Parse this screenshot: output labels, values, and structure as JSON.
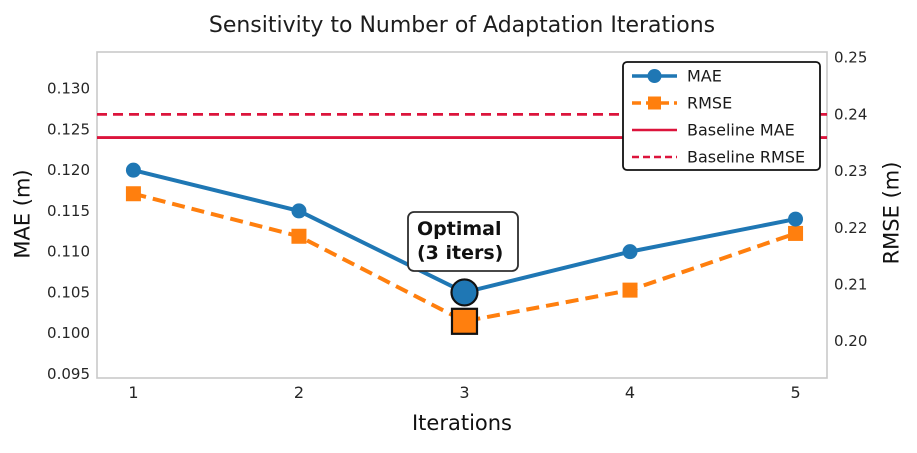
{
  "title": "Sensitivity to Number of Adaptation Iterations",
  "annotation": {
    "line1": "Optimal",
    "line2": "(3 iters)"
  },
  "colors": {
    "mae": "#1f77b4",
    "rmse": "#ff7f0e",
    "baseline": "#dc143c",
    "spine": "#c9c9c9",
    "text": "#262626"
  },
  "chart_data": {
    "type": "line",
    "title": "Sensitivity to Number of Adaptation Iterations",
    "xlabel": "Iterations",
    "ylabel_left": "MAE (m)",
    "ylabel_right": "RMSE (m)",
    "x": [
      1,
      2,
      3,
      4,
      5
    ],
    "series": [
      {
        "name": "MAE",
        "axis": "left",
        "color": "#1f77b4",
        "marker": "circle",
        "linestyle": "solid",
        "values": [
          0.12,
          0.115,
          0.105,
          0.11,
          0.114
        ]
      },
      {
        "name": "RMSE",
        "axis": "right",
        "color": "#ff7f0e",
        "marker": "square",
        "linestyle": "dashed",
        "values": [
          0.226,
          0.2185,
          0.2035,
          0.209,
          0.219
        ]
      }
    ],
    "baselines": [
      {
        "name": "Baseline MAE",
        "axis": "left",
        "value": 0.124,
        "color": "#dc143c",
        "linestyle": "solid"
      },
      {
        "name": "Baseline RMSE",
        "axis": "right",
        "value": 0.24,
        "color": "#dc143c",
        "linestyle": "dashed"
      }
    ],
    "annotation": {
      "text": "Optimal (3 iters)",
      "x": 3,
      "optimal_index": 2
    },
    "legend": [
      "MAE",
      "RMSE",
      "Baseline MAE",
      "Baseline RMSE"
    ],
    "legend_position": "upper right",
    "grid": false,
    "xlim": [
      0.78,
      5.19
    ],
    "ylim_left": [
      0.0945,
      0.1345
    ],
    "ylim_right": [
      0.1935,
      0.251
    ],
    "xticks": [
      {
        "v": 1,
        "label": "1"
      },
      {
        "v": 2,
        "label": "2"
      },
      {
        "v": 3,
        "label": "3"
      },
      {
        "v": 4,
        "label": "4"
      },
      {
        "v": 5,
        "label": "5"
      }
    ],
    "yticks_left": [
      {
        "v": 0.095,
        "label": "0.095"
      },
      {
        "v": 0.1,
        "label": "0.100"
      },
      {
        "v": 0.105,
        "label": "0.105"
      },
      {
        "v": 0.11,
        "label": "0.110"
      },
      {
        "v": 0.115,
        "label": "0.115"
      },
      {
        "v": 0.12,
        "label": "0.120"
      },
      {
        "v": 0.125,
        "label": "0.125"
      },
      {
        "v": 0.13,
        "label": "0.130"
      }
    ],
    "yticks_right": [
      {
        "v": 0.2,
        "label": "0.20"
      },
      {
        "v": 0.21,
        "label": "0.21"
      },
      {
        "v": 0.22,
        "label": "0.22"
      },
      {
        "v": 0.23,
        "label": "0.23"
      },
      {
        "v": 0.24,
        "label": "0.24"
      },
      {
        "v": 0.25,
        "label": "0.25"
      }
    ]
  }
}
